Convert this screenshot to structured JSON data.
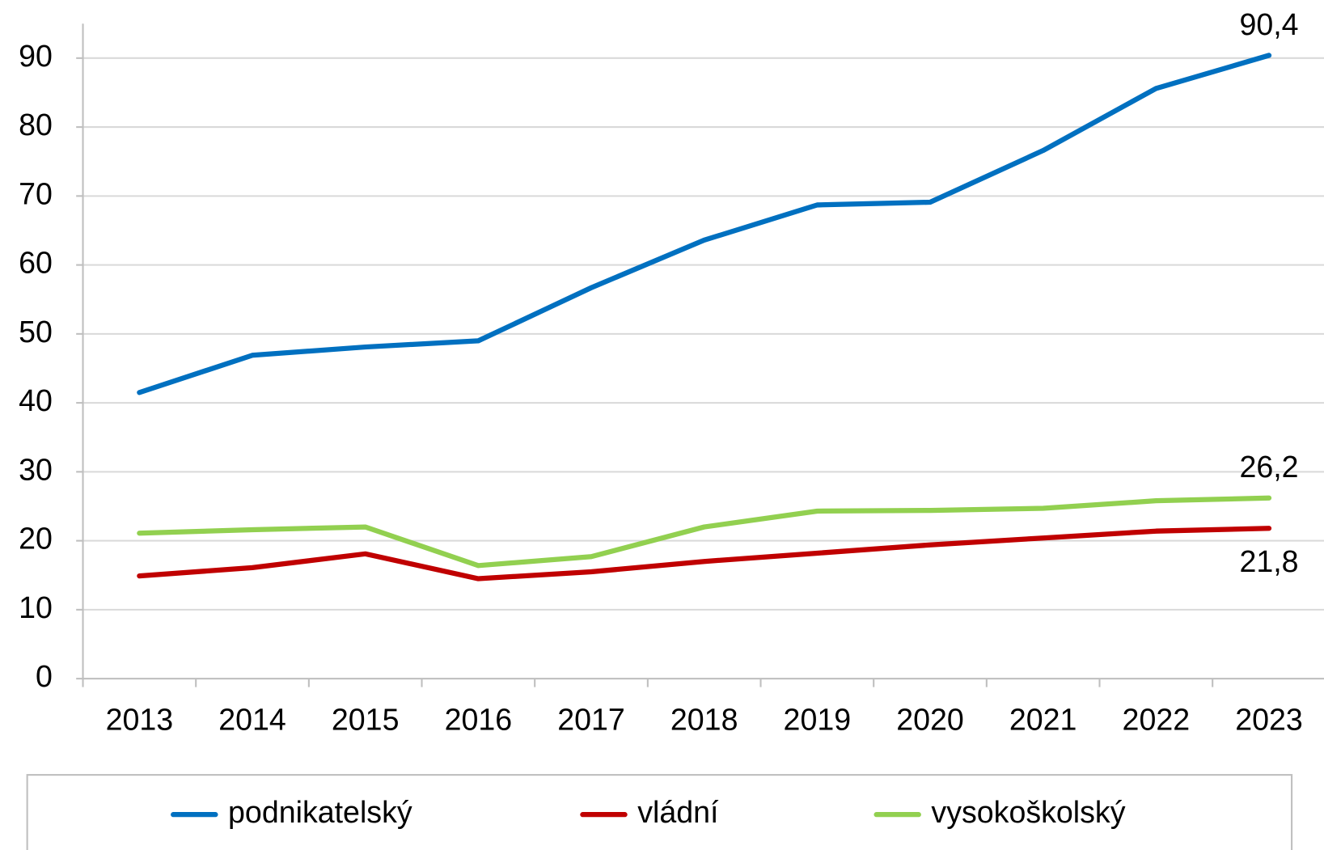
{
  "chart_data": {
    "type": "line",
    "categories": [
      "2013",
      "2014",
      "2015",
      "2016",
      "2017",
      "2018",
      "2019",
      "2020",
      "2021",
      "2022",
      "2023"
    ],
    "series": [
      {
        "name": "podnikatelský",
        "color": "#0070c0",
        "values": [
          41.5,
          46.9,
          48.1,
          49.0,
          56.7,
          63.6,
          68.7,
          69.1,
          76.6,
          85.6,
          90.4
        ],
        "value_labels": [
          null,
          null,
          null,
          null,
          null,
          null,
          null,
          null,
          null,
          null,
          "90,4"
        ]
      },
      {
        "name": "vládní",
        "color": "#c00000",
        "values": [
          14.9,
          16.1,
          18.1,
          14.5,
          15.5,
          17.0,
          18.2,
          19.4,
          20.4,
          21.4,
          21.8
        ],
        "value_labels": [
          null,
          null,
          null,
          null,
          null,
          null,
          null,
          null,
          null,
          null,
          "21,8"
        ]
      },
      {
        "name": "vysokoškolský",
        "color": "#92d050",
        "values": [
          21.1,
          21.6,
          22.0,
          16.4,
          17.7,
          22.0,
          24.3,
          24.4,
          24.7,
          25.8,
          26.2
        ],
        "value_labels": [
          null,
          null,
          null,
          null,
          null,
          null,
          null,
          null,
          null,
          null,
          "26,2"
        ]
      }
    ],
    "ylim": [
      0,
      95
    ],
    "yticks": [
      0,
      10,
      20,
      30,
      40,
      50,
      60,
      70,
      80,
      90
    ],
    "grid": true,
    "legend": "bottom"
  }
}
